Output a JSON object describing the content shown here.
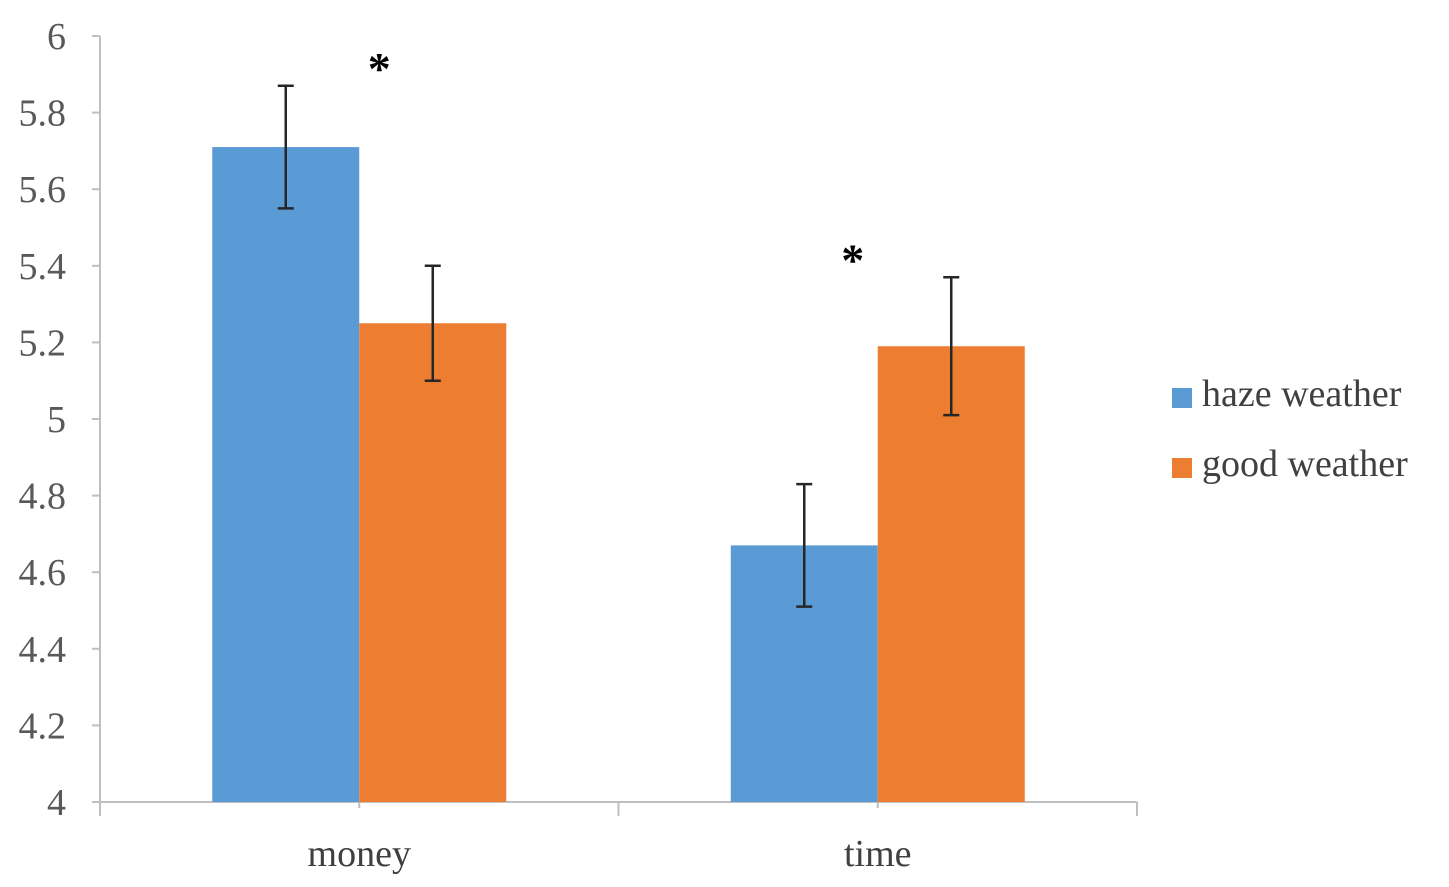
{
  "chart_data": {
    "type": "bar",
    "categories": [
      "money",
      "time"
    ],
    "series": [
      {
        "name": "haze weather",
        "color": "#5B9BD5",
        "values": [
          5.71,
          4.67
        ],
        "error_low": [
          5.55,
          4.51
        ],
        "error_high": [
          5.87,
          4.83
        ]
      },
      {
        "name": "good weather",
        "color": "#ED7D31",
        "values": [
          5.25,
          5.19
        ],
        "error_low": [
          5.1,
          5.01
        ],
        "error_high": [
          5.4,
          5.37
        ]
      }
    ],
    "ylim": [
      4,
      6
    ],
    "y_ticks": [
      "4",
      "4.2",
      "4.4",
      "4.6",
      "4.8",
      "5",
      "5.2",
      "5.4",
      "5.6",
      "5.8",
      "6"
    ],
    "annotations": [
      {
        "text": "*",
        "category": "money"
      },
      {
        "text": "*",
        "category": "time"
      }
    ],
    "legend_position": "right",
    "grid": false,
    "title": "",
    "xlabel": "",
    "ylabel": ""
  },
  "colors": {
    "axis": "#bfbfbf",
    "error_bar": "#262626"
  }
}
